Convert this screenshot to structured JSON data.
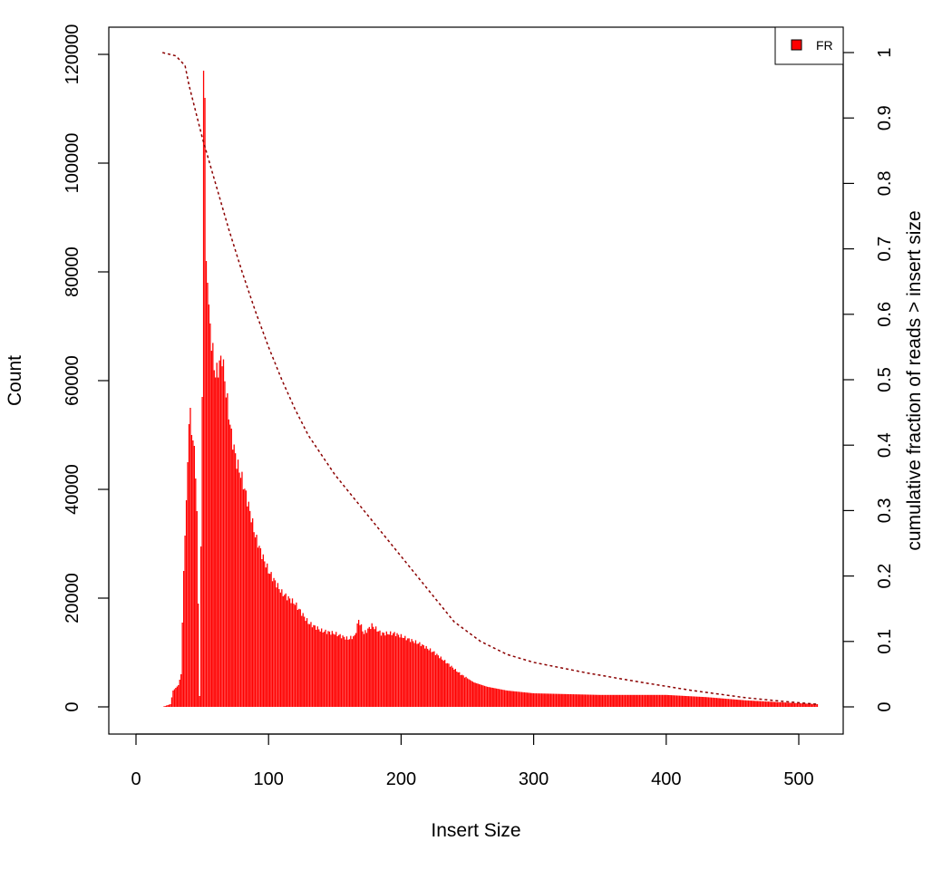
{
  "chart_data": {
    "type": "bar",
    "xlabel": "Insert Size",
    "ylabel": "Count",
    "y2label": "cumulative fraction of reads > insert size",
    "xlim": [
      0,
      520
    ],
    "ylim": [
      0,
      120000
    ],
    "y2lim": [
      0,
      1
    ],
    "x_ticks": [
      0,
      100,
      200,
      300,
      400,
      500
    ],
    "y_ticks": [
      0,
      20000,
      40000,
      60000,
      80000,
      100000,
      120000
    ],
    "y2_ticks": [
      0,
      0.1,
      0.2,
      0.3,
      0.4,
      0.5,
      0.6,
      0.7,
      0.8,
      0.9,
      1
    ],
    "legend": {
      "position": "top-right",
      "label": "FR"
    },
    "colors": {
      "bars": "#ff0000",
      "cumulative_line": "#8b0000",
      "axes": "#000000"
    },
    "histogram": {
      "name": "FR",
      "x_range": [
        20,
        514
      ],
      "profile_points": [
        [
          20,
          0
        ],
        [
          26,
          500
        ],
        [
          28,
          3000
        ],
        [
          32,
          4000
        ],
        [
          34,
          6000
        ],
        [
          36,
          25000
        ],
        [
          38,
          38000
        ],
        [
          40,
          52000
        ],
        [
          41,
          55000
        ],
        [
          42,
          50000
        ],
        [
          44,
          48000
        ],
        [
          46,
          36000
        ],
        [
          48,
          2000
        ],
        [
          50,
          57000
        ],
        [
          51,
          117000
        ],
        [
          52,
          112000
        ],
        [
          53,
          82000
        ],
        [
          55,
          74000
        ],
        [
          57,
          67000
        ],
        [
          60,
          61000
        ],
        [
          63,
          63000
        ],
        [
          65,
          64500
        ],
        [
          68,
          58000
        ],
        [
          72,
          50000
        ],
        [
          76,
          45000
        ],
        [
          80,
          42000
        ],
        [
          85,
          37000
        ],
        [
          90,
          31500
        ],
        [
          95,
          28000
        ],
        [
          100,
          25000
        ],
        [
          110,
          21000
        ],
        [
          120,
          19000
        ],
        [
          130,
          15500
        ],
        [
          140,
          14000
        ],
        [
          150,
          13500
        ],
        [
          160,
          12500
        ],
        [
          165,
          13000
        ],
        [
          168,
          16000
        ],
        [
          172,
          13500
        ],
        [
          178,
          15000
        ],
        [
          185,
          13500
        ],
        [
          195,
          13500
        ],
        [
          205,
          12500
        ],
        [
          215,
          11500
        ],
        [
          225,
          10000
        ],
        [
          235,
          8000
        ],
        [
          245,
          6000
        ],
        [
          255,
          4500
        ],
        [
          265,
          3700
        ],
        [
          280,
          3000
        ],
        [
          300,
          2500
        ],
        [
          350,
          2200
        ],
        [
          400,
          2200
        ],
        [
          430,
          1800
        ],
        [
          460,
          1200
        ],
        [
          490,
          800
        ],
        [
          514,
          500
        ]
      ]
    },
    "cumulative_fraction_points": [
      [
        20,
        1.0
      ],
      [
        30,
        0.995
      ],
      [
        37,
        0.98
      ],
      [
        40,
        0.95
      ],
      [
        45,
        0.91
      ],
      [
        50,
        0.87
      ],
      [
        60,
        0.8
      ],
      [
        70,
        0.73
      ],
      [
        80,
        0.665
      ],
      [
        90,
        0.605
      ],
      [
        100,
        0.55
      ],
      [
        110,
        0.5
      ],
      [
        120,
        0.455
      ],
      [
        130,
        0.415
      ],
      [
        150,
        0.355
      ],
      [
        170,
        0.305
      ],
      [
        190,
        0.255
      ],
      [
        200,
        0.23
      ],
      [
        220,
        0.18
      ],
      [
        240,
        0.13
      ],
      [
        260,
        0.1
      ],
      [
        280,
        0.08
      ],
      [
        300,
        0.068
      ],
      [
        340,
        0.052
      ],
      [
        380,
        0.038
      ],
      [
        420,
        0.025
      ],
      [
        460,
        0.014
      ],
      [
        490,
        0.008
      ],
      [
        514,
        0.004
      ]
    ]
  }
}
